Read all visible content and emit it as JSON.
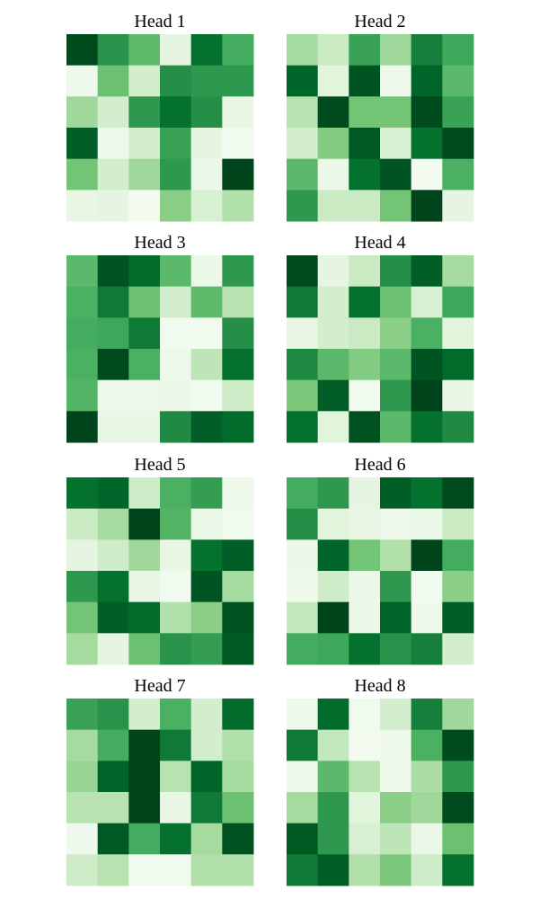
{
  "chart_data": {
    "type": "heatmap",
    "colormap": "Greens",
    "grid": false,
    "axes_visible": false,
    "value_range": [
      0,
      1
    ],
    "rows": 6,
    "cols": 6,
    "panels": [
      {
        "title": "Head 1",
        "matrix": [
          [
            0.98,
            0.72,
            0.55,
            0.12,
            0.86,
            0.62
          ],
          [
            0.06,
            0.52,
            0.2,
            0.74,
            0.7,
            0.7
          ],
          [
            0.38,
            0.2,
            0.7,
            0.86,
            0.74,
            0.1
          ],
          [
            0.92,
            0.06,
            0.2,
            0.66,
            0.12,
            0.04
          ],
          [
            0.5,
            0.2,
            0.38,
            0.7,
            0.08,
            1.0
          ],
          [
            0.1,
            0.12,
            0.03,
            0.44,
            0.18,
            0.32
          ]
        ]
      },
      {
        "title": "Head 2",
        "matrix": [
          [
            0.36,
            0.24,
            0.66,
            0.38,
            0.8,
            0.64
          ],
          [
            0.9,
            0.14,
            0.95,
            0.06,
            0.9,
            0.56
          ],
          [
            0.3,
            0.98,
            0.5,
            0.5,
            0.98,
            0.66
          ],
          [
            0.2,
            0.46,
            0.94,
            0.18,
            0.86,
            0.98
          ],
          [
            0.56,
            0.08,
            0.86,
            0.95,
            0.03,
            0.6
          ],
          [
            0.7,
            0.24,
            0.24,
            0.5,
            1.0,
            0.12
          ]
        ]
      },
      {
        "title": "Head 3",
        "matrix": [
          [
            0.56,
            0.95,
            0.88,
            0.56,
            0.08,
            0.7
          ],
          [
            0.6,
            0.82,
            0.52,
            0.2,
            0.55,
            0.3
          ],
          [
            0.62,
            0.64,
            0.82,
            0.04,
            0.04,
            0.74
          ],
          [
            0.6,
            0.98,
            0.6,
            0.06,
            0.28,
            0.86
          ],
          [
            0.58,
            0.06,
            0.06,
            0.08,
            0.04,
            0.22
          ],
          [
            1.0,
            0.1,
            0.1,
            0.76,
            0.92,
            0.88
          ]
        ]
      },
      {
        "title": "Head 4",
        "matrix": [
          [
            0.98,
            0.12,
            0.24,
            0.74,
            0.92,
            0.36
          ],
          [
            0.82,
            0.2,
            0.86,
            0.52,
            0.18,
            0.64
          ],
          [
            0.1,
            0.2,
            0.24,
            0.44,
            0.6,
            0.14
          ],
          [
            0.76,
            0.56,
            0.46,
            0.56,
            0.95,
            0.88
          ],
          [
            0.48,
            0.92,
            0.04,
            0.7,
            1.0,
            0.1
          ],
          [
            0.86,
            0.14,
            0.96,
            0.56,
            0.86,
            0.76
          ]
        ]
      },
      {
        "title": "Head 5",
        "matrix": [
          [
            0.86,
            0.9,
            0.22,
            0.6,
            0.68,
            0.06
          ],
          [
            0.24,
            0.36,
            1.0,
            0.58,
            0.08,
            0.04
          ],
          [
            0.12,
            0.22,
            0.38,
            0.1,
            0.86,
            0.92
          ],
          [
            0.7,
            0.86,
            0.1,
            0.04,
            0.95,
            0.36
          ],
          [
            0.5,
            0.92,
            0.88,
            0.32,
            0.44,
            0.96
          ],
          [
            0.36,
            0.12,
            0.52,
            0.72,
            0.68,
            0.94
          ]
        ]
      },
      {
        "title": "Head 6",
        "matrix": [
          [
            0.62,
            0.7,
            0.12,
            0.92,
            0.86,
            0.98
          ],
          [
            0.74,
            0.14,
            0.1,
            0.06,
            0.08,
            0.24
          ],
          [
            0.08,
            0.9,
            0.5,
            0.32,
            1.0,
            0.62
          ],
          [
            0.06,
            0.22,
            0.08,
            0.7,
            0.04,
            0.44
          ],
          [
            0.26,
            1.0,
            0.08,
            0.9,
            0.06,
            0.92
          ],
          [
            0.62,
            0.64,
            0.86,
            0.72,
            0.8,
            0.2
          ]
        ]
      },
      {
        "title": "Head 7",
        "matrix": [
          [
            0.66,
            0.72,
            0.2,
            0.6,
            0.2,
            0.88
          ],
          [
            0.36,
            0.62,
            1.0,
            0.82,
            0.2,
            0.32
          ],
          [
            0.4,
            0.9,
            1.0,
            0.3,
            0.9,
            0.36
          ],
          [
            0.3,
            0.3,
            1.0,
            0.1,
            0.82,
            0.52
          ],
          [
            0.05,
            0.94,
            0.62,
            0.86,
            0.36,
            0.96
          ],
          [
            0.22,
            0.3,
            0.04,
            0.04,
            0.32,
            0.32
          ]
        ]
      },
      {
        "title": "Head 8",
        "matrix": [
          [
            0.06,
            0.88,
            0.04,
            0.2,
            0.8,
            0.38
          ],
          [
            0.82,
            0.26,
            0.03,
            0.06,
            0.6,
            0.98
          ],
          [
            0.05,
            0.56,
            0.3,
            0.06,
            0.34,
            0.7
          ],
          [
            0.36,
            0.7,
            0.14,
            0.44,
            0.38,
            0.98
          ],
          [
            0.94,
            0.7,
            0.18,
            0.28,
            0.08,
            0.52
          ],
          [
            0.82,
            0.92,
            0.32,
            0.48,
            0.22,
            0.86
          ]
        ]
      }
    ]
  }
}
